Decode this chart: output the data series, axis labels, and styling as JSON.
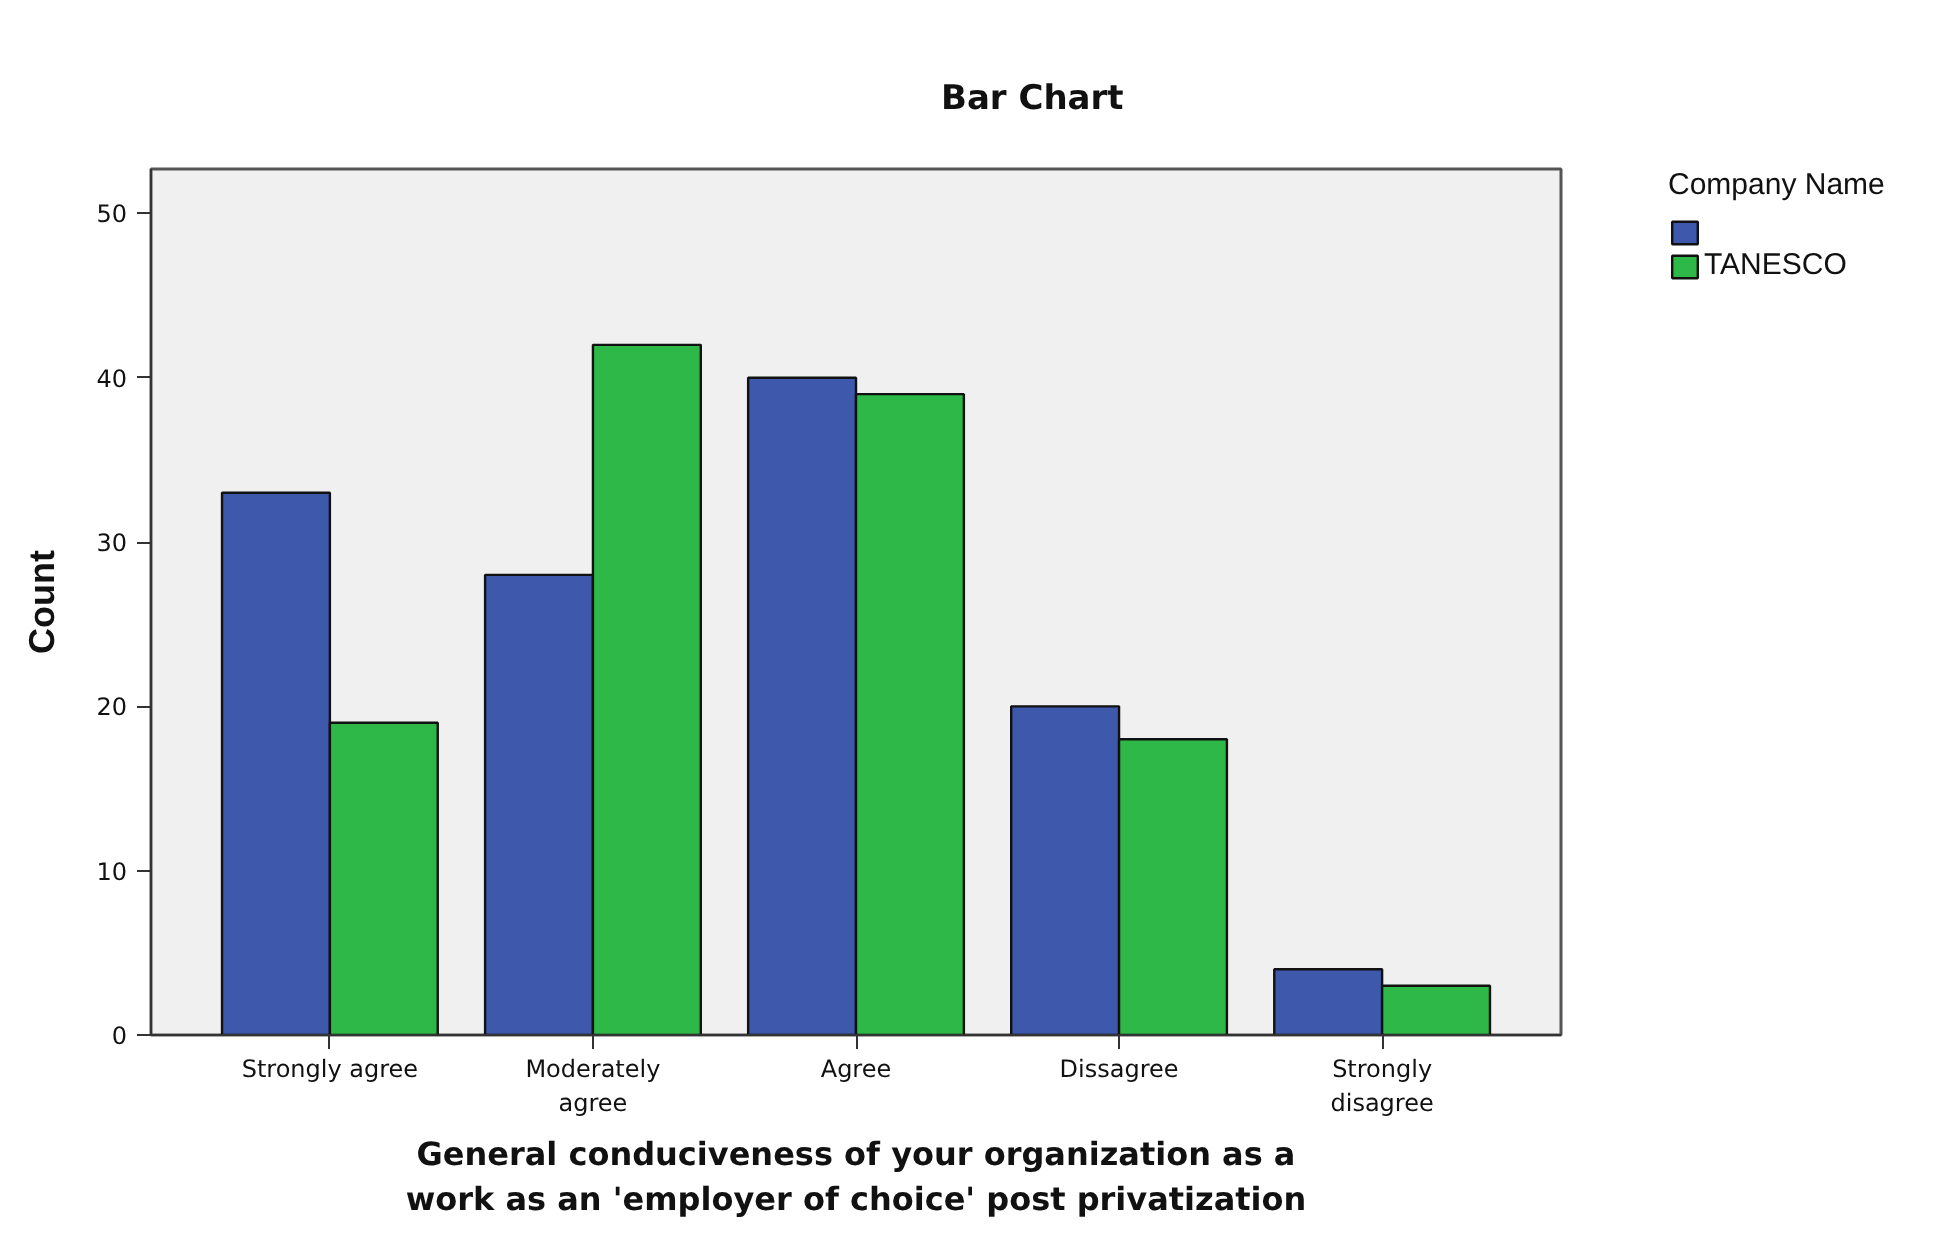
{
  "chart_data": {
    "type": "bar",
    "title": "Bar Chart",
    "xlabel": "General conduciveness of your organization as a\nwork as an 'employer of choice' post privatization",
    "ylabel": "Count",
    "legend_title": "Company Name",
    "categories": [
      "Strongly agree",
      "Moderately\nagree",
      "Agree",
      "Dissagree",
      "Strongly\ndisagree"
    ],
    "series": [
      {
        "color": "#3e58ab",
        "values": [
          33,
          28,
          40,
          20,
          4
        ]
      },
      {
        "name": "TANESCO",
        "color": "#2eb848",
        "values": [
          19,
          42,
          39,
          18,
          3
        ]
      }
    ],
    "ylim": [
      0,
      52.7
    ],
    "yticks": [
      0,
      10,
      20,
      30,
      40,
      50
    ],
    "legend": "top right"
  }
}
